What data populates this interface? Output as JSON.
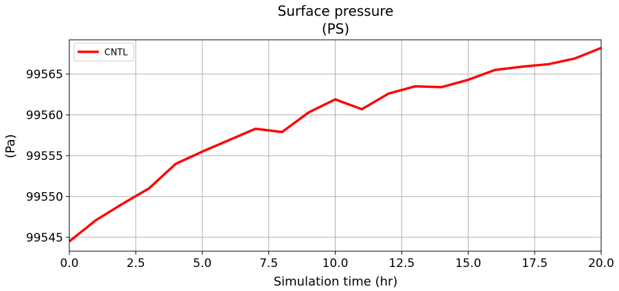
{
  "chart_data": {
    "type": "line",
    "title": "Surface pressure",
    "subtitle": "(PS)",
    "xlabel": "Simulation time (hr)",
    "ylabel": "(Pa)",
    "xlim": [
      0,
      20
    ],
    "ylim": [
      99543.3,
      99569.2
    ],
    "xticks": [
      0,
      2.5,
      5,
      7.5,
      10,
      12.5,
      15,
      17.5,
      20
    ],
    "xtick_labels": [
      "0.0",
      "2.5",
      "5.0",
      "7.5",
      "10.0",
      "12.5",
      "15.0",
      "17.5",
      "20.0"
    ],
    "yticks": [
      99545,
      99550,
      99555,
      99560,
      99565
    ],
    "ytick_labels": [
      "99545",
      "99550",
      "99555",
      "99560",
      "99565"
    ],
    "grid": true,
    "legend_position": "top-left",
    "series": [
      {
        "name": "CNTL",
        "color": "#ff0000",
        "x": [
          0,
          1,
          2,
          3,
          4,
          5,
          6,
          7,
          8,
          9,
          10,
          11,
          12,
          13,
          14,
          15,
          16,
          17,
          18,
          19,
          20
        ],
        "values": [
          99544.5,
          99547.1,
          99549.1,
          99551.0,
          99554.0,
          99555.5,
          99556.9,
          99558.3,
          99557.9,
          99560.3,
          99561.9,
          99560.7,
          99562.6,
          99563.5,
          99563.4,
          99564.3,
          99565.5,
          99565.9,
          99566.2,
          99566.9,
          99568.2
        ]
      }
    ]
  }
}
